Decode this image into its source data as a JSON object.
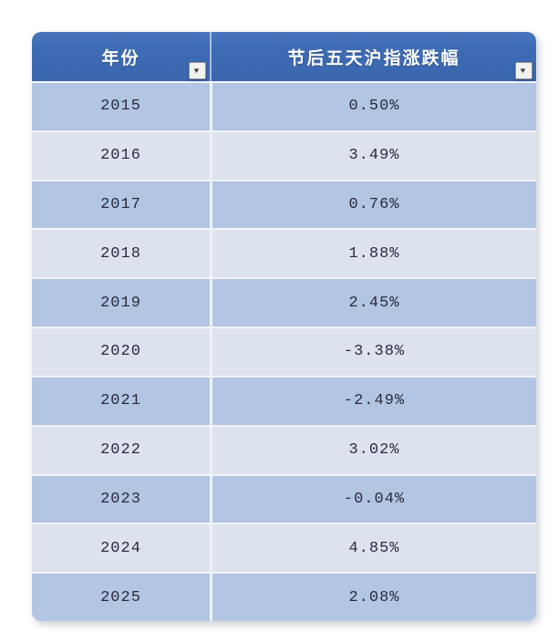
{
  "ui": {
    "filter_icon": "▼"
  },
  "colors": {
    "header_blue": "#3e6cb5",
    "row_dark": "#b2c5e3",
    "row_light": "#dde3ee",
    "header_text": "#ffffff",
    "data_text": "#2b2b3d"
  },
  "chart_data": {
    "type": "table",
    "title": "",
    "columns": [
      "年份",
      "节后五天沪指涨跌幅"
    ],
    "rows": [
      [
        "2015",
        "0.50%"
      ],
      [
        "2016",
        "3.49%"
      ],
      [
        "2017",
        "0.76%"
      ],
      [
        "2018",
        "1.88%"
      ],
      [
        "2019",
        "2.45%"
      ],
      [
        "2020",
        "-3.38%"
      ],
      [
        "2021",
        "-2.49%"
      ],
      [
        "2022",
        "3.02%"
      ],
      [
        "2023",
        "-0.04%"
      ],
      [
        "2024",
        "4.85%"
      ],
      [
        "2025",
        "2.08%"
      ]
    ]
  }
}
